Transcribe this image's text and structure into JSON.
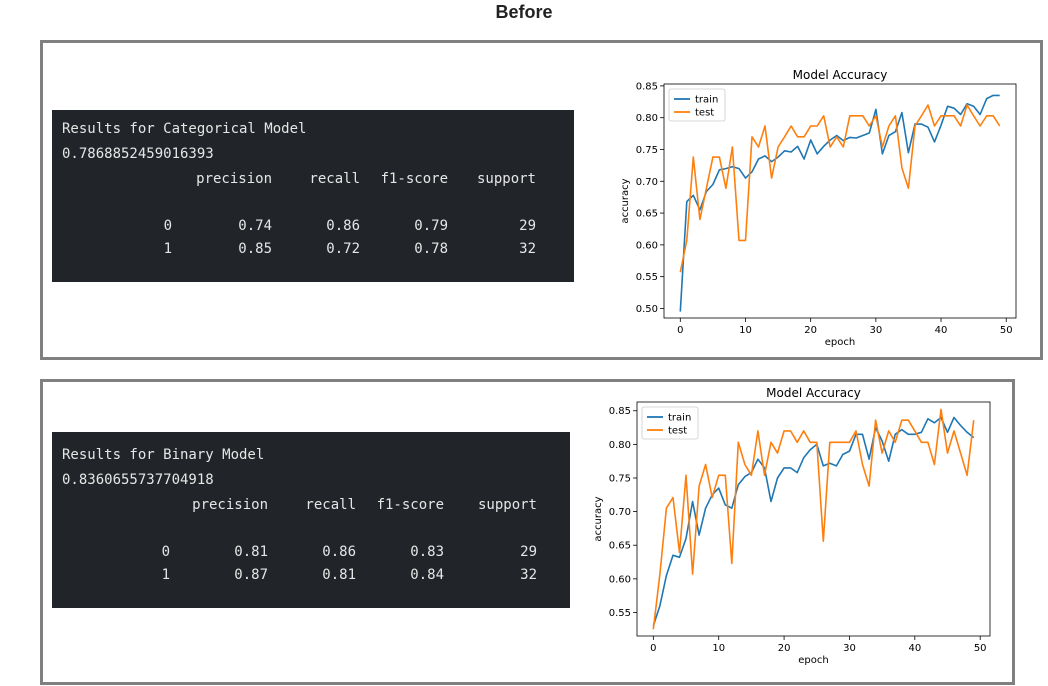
{
  "page": {
    "heading": "Before"
  },
  "panels": [
    {
      "report": {
        "title": "Results for Categorical Model",
        "accuracy": "0.7868852459016393",
        "headers": [
          "precision",
          "recall",
          "f1-score",
          "support"
        ],
        "rows": [
          {
            "label": "0",
            "values": [
              "0.74",
              "0.86",
              "0.79",
              "29"
            ]
          },
          {
            "label": "1",
            "values": [
              "0.85",
              "0.72",
              "0.78",
              "32"
            ]
          }
        ]
      }
    },
    {
      "report": {
        "title": "Results for Binary Model",
        "accuracy": "0.8360655737704918",
        "headers": [
          "precision",
          "recall",
          "f1-score",
          "support"
        ],
        "rows": [
          {
            "label": "0",
            "values": [
              "0.81",
              "0.86",
              "0.83",
              "29"
            ]
          },
          {
            "label": "1",
            "values": [
              "0.87",
              "0.81",
              "0.84",
              "32"
            ]
          }
        ]
      }
    }
  ],
  "chart_data": [
    {
      "type": "line",
      "title": "Model Accuracy",
      "xlabel": "epoch",
      "ylabel": "accuracy",
      "xlim": [
        -2.5,
        51.5
      ],
      "ylim": [
        0.485,
        0.853
      ],
      "xticks": [
        0,
        10,
        20,
        30,
        40,
        50
      ],
      "yticks": [
        0.5,
        0.55,
        0.6,
        0.65,
        0.7,
        0.75,
        0.8,
        0.85
      ],
      "ytick_labels": [
        "0.50",
        "0.55",
        "0.60",
        "0.65",
        "0.70",
        "0.75",
        "0.80",
        "0.85"
      ],
      "legend": "top-left",
      "grid": false,
      "series": [
        {
          "name": "train",
          "color": "#1f77b4",
          "values": [
            0.495,
            0.668,
            0.678,
            0.655,
            0.684,
            0.695,
            0.718,
            0.72,
            0.723,
            0.72,
            0.705,
            0.715,
            0.735,
            0.74,
            0.731,
            0.738,
            0.748,
            0.746,
            0.755,
            0.735,
            0.765,
            0.743,
            0.755,
            0.765,
            0.772,
            0.764,
            0.769,
            0.768,
            0.772,
            0.776,
            0.813,
            0.743,
            0.772,
            0.778,
            0.808,
            0.745,
            0.79,
            0.79,
            0.785,
            0.762,
            0.788,
            0.818,
            0.815,
            0.805,
            0.822,
            0.818,
            0.805,
            0.83,
            0.835,
            0.835
          ]
        },
        {
          "name": "test",
          "color": "#ff7f0e",
          "values": [
            0.557,
            0.607,
            0.738,
            0.64,
            0.689,
            0.738,
            0.738,
            0.689,
            0.754,
            0.607,
            0.607,
            0.77,
            0.754,
            0.787,
            0.705,
            0.754,
            0.77,
            0.787,
            0.77,
            0.77,
            0.787,
            0.787,
            0.803,
            0.754,
            0.77,
            0.754,
            0.803,
            0.803,
            0.803,
            0.787,
            0.803,
            0.754,
            0.787,
            0.803,
            0.721,
            0.689,
            0.787,
            0.803,
            0.82,
            0.787,
            0.803,
            0.803,
            0.803,
            0.787,
            0.82,
            0.803,
            0.787,
            0.803,
            0.803,
            0.787
          ]
        }
      ]
    },
    {
      "type": "line",
      "title": "Model Accuracy",
      "xlabel": "epoch",
      "ylabel": "accuracy",
      "xlim": [
        -2.5,
        51.5
      ],
      "ylim": [
        0.515,
        0.863
      ],
      "xticks": [
        0,
        10,
        20,
        30,
        40,
        50
      ],
      "yticks": [
        0.55,
        0.6,
        0.65,
        0.7,
        0.75,
        0.8,
        0.85
      ],
      "ytick_labels": [
        "0.55",
        "0.60",
        "0.65",
        "0.70",
        "0.75",
        "0.80",
        "0.85"
      ],
      "legend": "top-left",
      "grid": false,
      "series": [
        {
          "name": "train",
          "color": "#1f77b4",
          "values": [
            0.53,
            0.56,
            0.605,
            0.635,
            0.632,
            0.66,
            0.715,
            0.665,
            0.705,
            0.725,
            0.735,
            0.71,
            0.705,
            0.74,
            0.752,
            0.758,
            0.778,
            0.765,
            0.715,
            0.75,
            0.765,
            0.765,
            0.758,
            0.78,
            0.792,
            0.8,
            0.768,
            0.772,
            0.768,
            0.785,
            0.79,
            0.815,
            0.815,
            0.778,
            0.825,
            0.805,
            0.775,
            0.815,
            0.822,
            0.815,
            0.815,
            0.818,
            0.838,
            0.832,
            0.84,
            0.818,
            0.84,
            0.828,
            0.818,
            0.81
          ]
        },
        {
          "name": "test",
          "color": "#ff7f0e",
          "values": [
            0.525,
            0.607,
            0.705,
            0.721,
            0.639,
            0.754,
            0.607,
            0.738,
            0.77,
            0.721,
            0.754,
            0.754,
            0.623,
            0.803,
            0.77,
            0.754,
            0.82,
            0.754,
            0.803,
            0.787,
            0.82,
            0.82,
            0.803,
            0.82,
            0.803,
            0.803,
            0.656,
            0.803,
            0.803,
            0.803,
            0.803,
            0.82,
            0.77,
            0.738,
            0.836,
            0.787,
            0.82,
            0.803,
            0.836,
            0.836,
            0.82,
            0.803,
            0.803,
            0.77,
            0.852,
            0.787,
            0.82,
            0.787,
            0.754,
            0.836
          ]
        }
      ]
    }
  ]
}
